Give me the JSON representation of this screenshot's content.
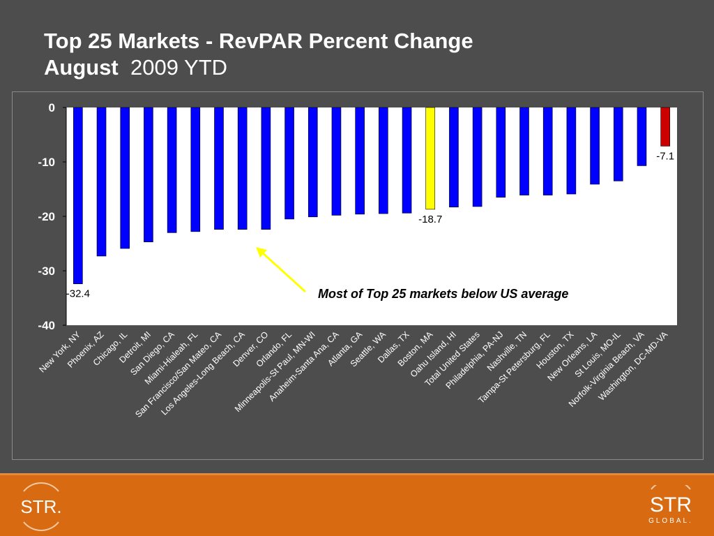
{
  "title": {
    "line1": "Top 25 Markets - RevPAR Percent Change",
    "line2_bold": "August",
    "line2_rest": "2009 YTD"
  },
  "chart_data": {
    "type": "bar",
    "categories": [
      "New York, NY",
      "Phoenix, AZ",
      "Chicago, IL",
      "Detroit, MI",
      "San Diego, CA",
      "Miami-Hialeah, FL",
      "San Francisco/San Mateo, CA",
      "Los Angeles-Long Beach, CA",
      "Denver, CO",
      "Orlando, FL",
      "Minneapolis-St Paul, MN-WI",
      "Anaheim-Santa Ana, CA",
      "Atlanta, GA",
      "Seattle, WA",
      "Dallas, TX",
      "Boston, MA",
      "Oahu Island, HI",
      "Total United States",
      "Philadelphia, PA-NJ",
      "Nashville, TN",
      "Tampa-St Petersburg, FL",
      "Houston, TX",
      "New Orleans, LA",
      "St Louis, MO-IL",
      "Norfolk-Virginia Beach, VA",
      "Washington, DC-MD-VA"
    ],
    "values": [
      -32.4,
      -27.3,
      -25.9,
      -24.7,
      -23.0,
      -22.8,
      -22.4,
      -22.4,
      -22.4,
      -20.5,
      -20.1,
      -19.8,
      -19.6,
      -19.5,
      -19.4,
      -18.7,
      -18.3,
      -18.2,
      -16.5,
      -16.1,
      -16.1,
      -15.9,
      -14.1,
      -13.5,
      -10.7,
      -7.1
    ],
    "colors": [
      "#0000ff",
      "#0000ff",
      "#0000ff",
      "#0000ff",
      "#0000ff",
      "#0000ff",
      "#0000ff",
      "#0000ff",
      "#0000ff",
      "#0000ff",
      "#0000ff",
      "#0000ff",
      "#0000ff",
      "#0000ff",
      "#0000ff",
      "#ffff00",
      "#0000ff",
      "#0000ff",
      "#0000ff",
      "#0000ff",
      "#0000ff",
      "#0000ff",
      "#0000ff",
      "#0000ff",
      "#0000ff",
      "#cc0000"
    ],
    "data_labels": [
      {
        "index": 0,
        "text": "-32.4"
      },
      {
        "index": 15,
        "text": "-18.7"
      },
      {
        "index": 25,
        "text": "-7.1"
      }
    ],
    "yticks": [
      0,
      -10,
      -20,
      -30,
      -40
    ],
    "ylim": [
      -40,
      0
    ],
    "annotation": "Most of Top 25 markets below US average",
    "grid": false
  },
  "footer": {
    "logo_left": "STR.",
    "logo_right_main": "STR",
    "logo_right_sub": "GLOBAL."
  },
  "colors": {
    "background": "#4d4d4d",
    "plot_background": "#ffffff",
    "footer": "#d86a12",
    "arrow": "#ffff00"
  }
}
